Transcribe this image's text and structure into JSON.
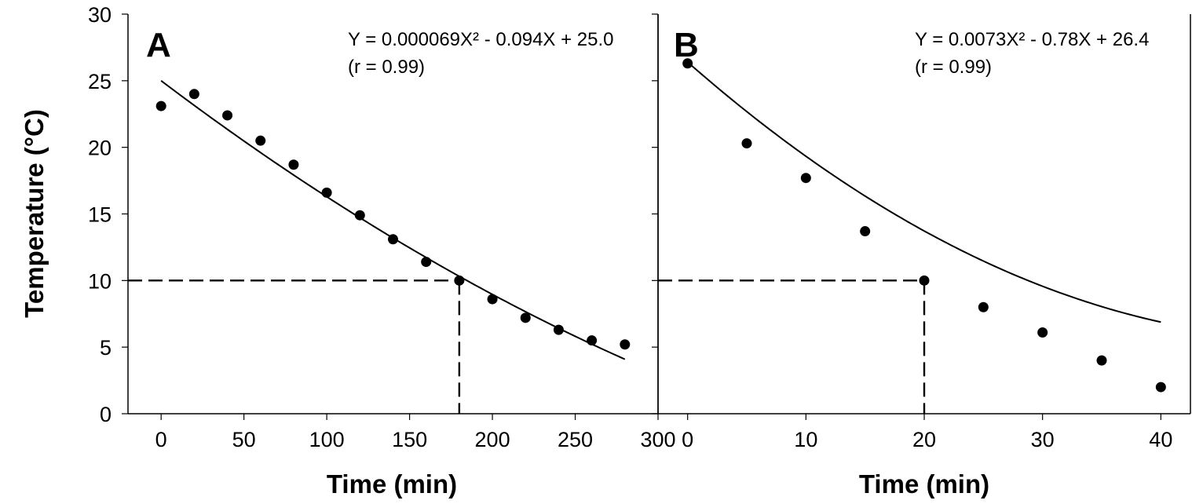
{
  "figure": {
    "ylabel": "Temperature (°C)"
  },
  "chart_data": [
    {
      "type": "scatter",
      "panel_label": "A",
      "equation": "Y = 0.000069X² - 0.094X + 25.0",
      "r_text": "(r = 0.99)",
      "xlabel": "Time (min)",
      "ylabel": "Temperature (°C)",
      "xlim": [
        -20,
        300
      ],
      "ylim": [
        0,
        30
      ],
      "xticks": [
        0,
        50,
        100,
        150,
        200,
        250,
        300
      ],
      "yticks": [
        0,
        5,
        10,
        15,
        20,
        25,
        30
      ],
      "grid": false,
      "points": {
        "x": [
          0,
          20,
          40,
          60,
          80,
          100,
          120,
          140,
          160,
          180,
          200,
          220,
          240,
          260,
          280
        ],
        "y": [
          23.1,
          24.0,
          22.4,
          20.5,
          18.7,
          16.6,
          14.9,
          13.1,
          11.4,
          10.0,
          8.6,
          7.2,
          6.3,
          5.5,
          5.2
        ]
      },
      "fit": {
        "a": 6.9e-05,
        "b": -0.094,
        "c": 25.0,
        "x_range": [
          0,
          280
        ]
      },
      "reference": {
        "x": 180,
        "y": 10
      }
    },
    {
      "type": "scatter",
      "panel_label": "B",
      "equation": "Y = 0.0073X² - 0.78X + 26.4",
      "r_text": "(r = 0.99)",
      "xlabel": "Time (min)",
      "ylabel": "Temperature (°C)",
      "xlim": [
        -2.5,
        42.5
      ],
      "ylim": [
        0,
        30
      ],
      "xticks": [
        0,
        10,
        20,
        30,
        40
      ],
      "yticks": [
        0,
        5,
        10,
        15,
        20,
        25,
        30
      ],
      "grid": false,
      "points": {
        "x": [
          0,
          5,
          10,
          15,
          20,
          25,
          30,
          35,
          40
        ],
        "y": [
          26.3,
          20.3,
          17.7,
          13.7,
          10.0,
          8.0,
          6.1,
          4.0,
          2.0
        ]
      },
      "fit": {
        "a": 0.0073,
        "b": -0.78,
        "c": 26.4,
        "x_range": [
          0,
          40
        ]
      },
      "reference": {
        "x": 20,
        "y": 10
      }
    }
  ]
}
